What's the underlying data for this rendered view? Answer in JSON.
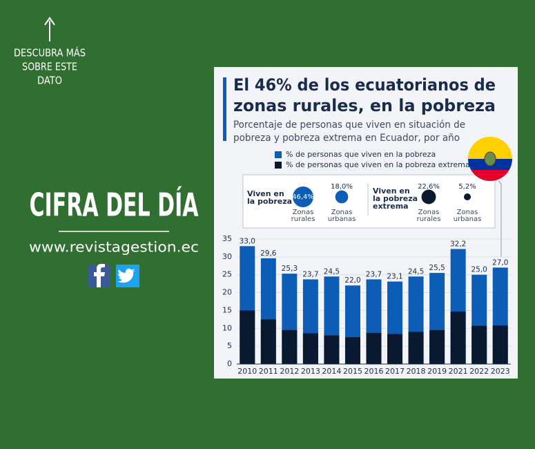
{
  "sidebar": {
    "cta_lines": [
      "DESCUBRA MÁS",
      "SOBRE ESTE",
      "DATO"
    ],
    "headline": "CIFRA DEL DÍA",
    "website": "www.revistagestion.ec"
  },
  "chart_data": {
    "type": "bar",
    "title_lines": [
      "El 46% de los ecuatorianos de",
      "zonas rurales, en la pobreza"
    ],
    "subtitle_lines": [
      "Porcentaje de personas que viven en situación de",
      "pobreza y pobreza extrema en Ecuador, por año"
    ],
    "categories": [
      "2010",
      "2011",
      "2012",
      "2013",
      "2014",
      "2015",
      "2016",
      "2017",
      "2018",
      "2019",
      "2021",
      "2022",
      "2023"
    ],
    "series": [
      {
        "name": "% de personas que viven en la pobreza",
        "color": "#0d5cb6",
        "values": [
          33.0,
          29.6,
          25.3,
          23.7,
          24.5,
          22.0,
          23.7,
          23.1,
          24.5,
          25.5,
          32.2,
          25.0,
          27.0
        ],
        "value_labels": [
          "33,0",
          "29,6",
          "25,3",
          "23,7",
          "24,5",
          "22,0",
          "23,7",
          "23,1",
          "24,5",
          "25,5",
          "32,2",
          "25,0",
          "27,0"
        ]
      },
      {
        "name": "% de personas que viven en la pobreza extrema",
        "color": "#0a1830",
        "values": [
          15.0,
          12.5,
          9.5,
          8.6,
          8.0,
          7.5,
          8.7,
          8.4,
          9.0,
          9.5,
          14.7,
          10.7,
          10.8
        ]
      }
    ],
    "ylim": [
      0,
      35
    ],
    "yticks": [
      0,
      5,
      10,
      15,
      20,
      25,
      30,
      35
    ],
    "overlay": true,
    "bubble_groups": [
      {
        "label_lines": [
          "Viven en",
          "la pobreza"
        ],
        "color": "#0d5cb6",
        "bubbles": [
          {
            "value": 46.4,
            "value_label": "46,4%",
            "zone_lines": [
              "Zonas",
              "rurales"
            ]
          },
          {
            "value": 18.0,
            "value_label": "18,0%",
            "zone_lines": [
              "Zonas",
              "urbanas"
            ]
          }
        ]
      },
      {
        "label_lines": [
          "Viven en",
          "la pobreza",
          "extrema"
        ],
        "color": "#0a1830",
        "bubbles": [
          {
            "value": 22.6,
            "value_label": "22,6%",
            "zone_lines": [
              "Zonas",
              "rurales"
            ]
          },
          {
            "value": 5.2,
            "value_label": "5,2%",
            "zone_lines": [
              "Zonas",
              "urbanas"
            ]
          }
        ]
      }
    ]
  }
}
